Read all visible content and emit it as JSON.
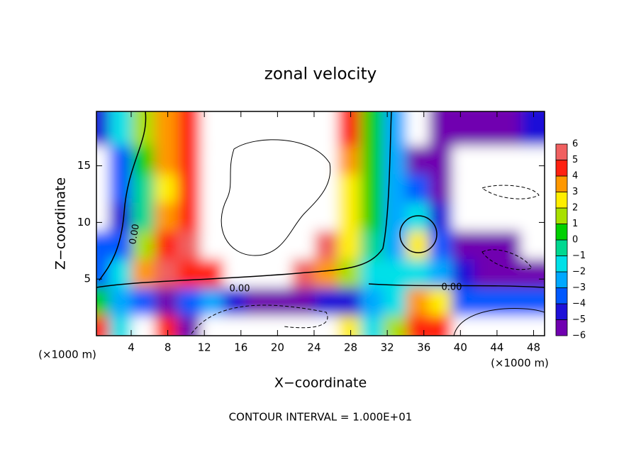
{
  "chart_data": {
    "type": "contour",
    "title": "zonal velocity",
    "x_label": "X−coordinate",
    "y_label": "Z−coordinate",
    "x_unit": "(×1000 m)",
    "y_unit": "(×1000 m)",
    "footnote": "CONTOUR INTERVAL = 1.000E+01",
    "contour_labels": [
      "0.00",
      "0.00",
      "0.00"
    ],
    "xlim": [
      0.2,
      49.2
    ],
    "ylim": [
      0,
      19.8
    ],
    "xticks": [
      4,
      8,
      12,
      16,
      20,
      24,
      28,
      32,
      36,
      40,
      44,
      48
    ],
    "yticks": [
      5,
      10,
      15
    ],
    "x": [
      1.25,
      3.75,
      6.25,
      8.75,
      11.25,
      13.75,
      16.25,
      18.75,
      21.25,
      23.75,
      26.25,
      28.75,
      31.25,
      33.75,
      36.25,
      38.75,
      41.25,
      43.75,
      46.25,
      48.75
    ],
    "y": [
      1.25,
      3.75,
      6.25,
      8.75,
      11.25,
      13.75,
      16.25,
      18.75
    ],
    "z": [
      [
        5,
        -1,
        8,
        5,
        -6,
        -8,
        -8,
        -8,
        -8,
        -8,
        -8,
        3,
        -1,
        2,
        5,
        5,
        8,
        8,
        8,
        8
      ],
      [
        1,
        -2,
        -3,
        -5,
        -3,
        -2,
        -4,
        -5,
        -5,
        -5,
        -4,
        -4,
        -2,
        -1,
        4,
        3,
        -3,
        -3,
        -3,
        -3
      ],
      [
        -3,
        -1,
        4,
        6,
        5,
        5,
        7,
        8,
        8,
        6,
        4,
        2,
        -1,
        -1,
        -1,
        -2,
        -4,
        -5,
        -5,
        -5
      ],
      [
        -3,
        -3,
        2,
        5,
        6,
        8,
        8,
        8,
        8,
        8,
        6,
        3,
        0,
        -2,
        3,
        -3,
        -5,
        -5,
        -6,
        8
      ],
      [
        8,
        -4,
        0,
        4,
        5,
        8,
        8,
        8,
        8,
        8,
        7,
        3,
        1,
        -2,
        -1,
        -4,
        8,
        8,
        8,
        8
      ],
      [
        8,
        -3,
        0,
        3,
        5,
        8,
        8,
        8,
        8,
        8,
        8,
        3,
        1,
        -2,
        -3,
        -5,
        8,
        8,
        8,
        8
      ],
      [
        8,
        -3,
        1,
        4,
        5,
        8,
        8,
        8,
        8,
        8,
        8,
        4,
        1,
        -2,
        -5,
        -6,
        8,
        8,
        8,
        8
      ],
      [
        -4,
        -1,
        2,
        4,
        5,
        8,
        8,
        8,
        8,
        8,
        8,
        5,
        1,
        -2,
        8,
        -6,
        -6,
        -6,
        -5,
        -4
      ]
    ],
    "levels": [
      {
        "value": -6,
        "label": "−6"
      },
      {
        "value": -5,
        "label": "−5"
      },
      {
        "value": -4,
        "label": "−4"
      },
      {
        "value": -3,
        "label": "−3"
      },
      {
        "value": -2,
        "label": "−2"
      },
      {
        "value": -1,
        "label": "−1"
      },
      0,
      1,
      2,
      3,
      4,
      5,
      6
    ],
    "colors": [
      "#7000b0",
      "#1e10d8",
      "#0058ff",
      "#00a8ff",
      "#00e0e8",
      "#00d890",
      "#00d000",
      "#a8e000",
      "#ffee00",
      "#ff9800",
      "#ff2010",
      "#f06060"
    ]
  }
}
